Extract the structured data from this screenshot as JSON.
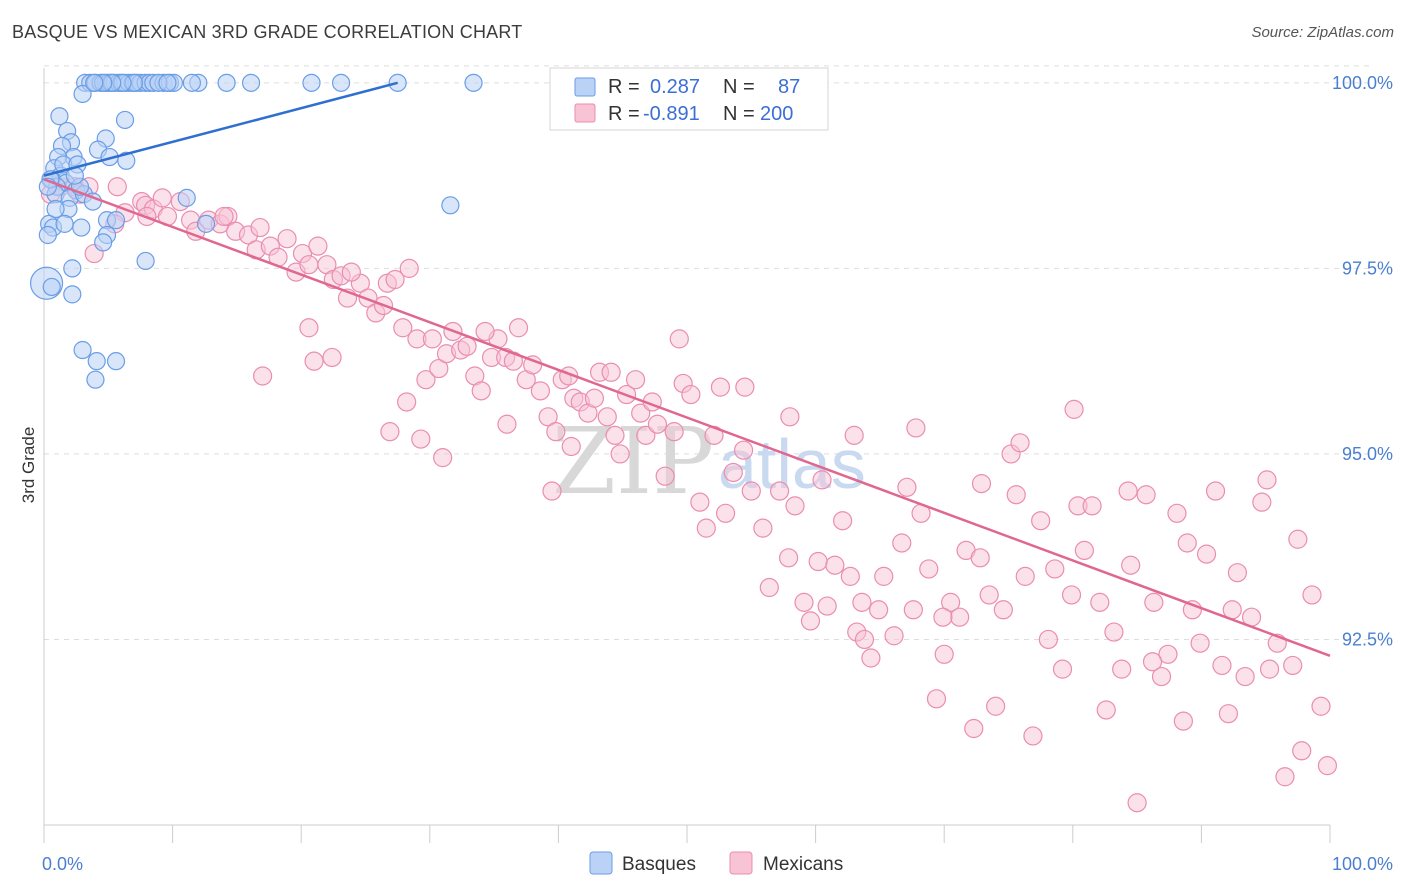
{
  "title": "BASQUE VS MEXICAN 3RD GRADE CORRELATION CHART",
  "source": "Source: ZipAtlas.com",
  "watermark": {
    "part1": "ZIP",
    "part2": "atlas"
  },
  "colors": {
    "basque": "#6a9ee6",
    "basque_fill": "#b9d2f5",
    "basque_line": "#2f6fd0",
    "mexican": "#eb8db0",
    "mexican_fill": "#f7c3d5",
    "mexican_line": "#e0678f",
    "tick": "#4a7fd0",
    "grid": "#dddddd"
  },
  "legend": {
    "rows": [
      {
        "r_label": "R =",
        "r_value": "0.287",
        "n_label": "N =",
        "n_value": "87"
      },
      {
        "r_label": "R =",
        "r_value": "-0.891",
        "n_label": "N =",
        "n_value": "200"
      }
    ],
    "bottom": [
      "Basques",
      "Mexicans"
    ]
  },
  "chart_data": {
    "type": "scatter",
    "title": "BASQUE VS MEXICAN 3RD GRADE CORRELATION CHART",
    "xlabel": "",
    "ylabel": "3rd Grade",
    "xlim": [
      0,
      100
    ],
    "ylim": [
      90.0,
      100.2
    ],
    "x_tick_labels": [
      "0.0%",
      "100.0%"
    ],
    "y_ticks": [
      100.0,
      97.5,
      95.0,
      92.5
    ],
    "y_tick_labels": [
      "100.0%",
      "97.5%",
      "95.0%",
      "92.5%"
    ],
    "grid": true,
    "legend_position": "top-center",
    "series": [
      {
        "name": "Basques",
        "r": 0.287,
        "n": 87,
        "trend": {
          "x": [
            0,
            27.5
          ],
          "y": [
            98.75,
            100.0
          ]
        },
        "points": [
          [
            3.2,
            100
          ],
          [
            3.6,
            100
          ],
          [
            4.0,
            100
          ],
          [
            4.4,
            100
          ],
          [
            4.8,
            100
          ],
          [
            5.0,
            100
          ],
          [
            5.2,
            100
          ],
          [
            5.5,
            100
          ],
          [
            5.8,
            100
          ],
          [
            6.0,
            100
          ],
          [
            6.3,
            100
          ],
          [
            6.6,
            100
          ],
          [
            6.9,
            100
          ],
          [
            7.2,
            100
          ],
          [
            7.5,
            100
          ],
          [
            7.9,
            100
          ],
          [
            8.2,
            100
          ],
          [
            8.5,
            100
          ],
          [
            9.3,
            100
          ],
          [
            9.8,
            100
          ],
          [
            10.1,
            100
          ],
          [
            12.0,
            100
          ],
          [
            14.2,
            100
          ],
          [
            16.1,
            100
          ],
          [
            20.8,
            100
          ],
          [
            23.1,
            100
          ],
          [
            27.5,
            100
          ],
          [
            33.4,
            100
          ],
          [
            3.0,
            99.85
          ],
          [
            1.2,
            99.55
          ],
          [
            6.3,
            99.5
          ],
          [
            1.8,
            99.35
          ],
          [
            2.1,
            99.2
          ],
          [
            4.8,
            99.25
          ],
          [
            1.4,
            99.15
          ],
          [
            2.3,
            99.0
          ],
          [
            4.2,
            99.1
          ],
          [
            1.1,
            99.0
          ],
          [
            6.4,
            98.95
          ],
          [
            0.8,
            98.85
          ],
          [
            1.3,
            98.75
          ],
          [
            0.6,
            98.7
          ],
          [
            1.7,
            98.65
          ],
          [
            1.0,
            98.6
          ],
          [
            2.5,
            98.55
          ],
          [
            0.9,
            98.5
          ],
          [
            2.0,
            98.45
          ],
          [
            3.1,
            98.5
          ],
          [
            11.1,
            98.45
          ],
          [
            31.6,
            98.35
          ],
          [
            0.4,
            98.1
          ],
          [
            0.7,
            98.05
          ],
          [
            2.9,
            98.05
          ],
          [
            4.9,
            98.15
          ],
          [
            5.6,
            98.15
          ],
          [
            12.6,
            98.1
          ],
          [
            0.3,
            97.95
          ],
          [
            4.9,
            97.95
          ],
          [
            4.6,
            97.85
          ],
          [
            7.9,
            97.6
          ],
          [
            2.2,
            97.5
          ],
          [
            0.2,
            97.3
          ],
          [
            0.6,
            97.25
          ],
          [
            2.2,
            97.15
          ],
          [
            3.0,
            96.4
          ],
          [
            4.1,
            96.25
          ],
          [
            5.6,
            96.25
          ],
          [
            4.0,
            96.0
          ],
          [
            0.5,
            98.7
          ],
          [
            1.5,
            98.9
          ],
          [
            2.8,
            98.6
          ],
          [
            3.8,
            98.4
          ],
          [
            1.9,
            98.3
          ],
          [
            0.3,
            98.6
          ],
          [
            2.6,
            98.9
          ],
          [
            5.1,
            99.0
          ],
          [
            8.9,
            100
          ],
          [
            7.0,
            100
          ],
          [
            6.1,
            100
          ],
          [
            5.3,
            100
          ],
          [
            4.6,
            100
          ],
          [
            3.9,
            100
          ],
          [
            9.6,
            100
          ],
          [
            11.5,
            100
          ],
          [
            0.9,
            98.3
          ],
          [
            1.6,
            98.1
          ],
          [
            2.4,
            98.75
          ]
        ]
      },
      {
        "name": "Mexicans",
        "r": -0.891,
        "n": 200,
        "trend": {
          "x": [
            0,
            100
          ],
          "y": [
            98.7,
            92.28
          ]
        },
        "points": [
          [
            0.5,
            98.5
          ],
          [
            1.3,
            98.6
          ],
          [
            2.4,
            98.6
          ],
          [
            2.8,
            98.5
          ],
          [
            3.5,
            98.6
          ],
          [
            3.9,
            97.7
          ],
          [
            5.7,
            98.6
          ],
          [
            6.3,
            98.25
          ],
          [
            7.6,
            98.4
          ],
          [
            7.9,
            98.35
          ],
          [
            8.5,
            98.3
          ],
          [
            9.2,
            98.45
          ],
          [
            9.6,
            98.2
          ],
          [
            10.6,
            98.4
          ],
          [
            11.4,
            98.15
          ],
          [
            11.8,
            98.0
          ],
          [
            12.8,
            98.15
          ],
          [
            13.7,
            98.1
          ],
          [
            14.3,
            98.2
          ],
          [
            14.9,
            98.0
          ],
          [
            15.9,
            97.95
          ],
          [
            16.5,
            97.75
          ],
          [
            17.6,
            97.8
          ],
          [
            18.2,
            97.65
          ],
          [
            18.9,
            97.9
          ],
          [
            19.6,
            97.45
          ],
          [
            20.1,
            97.7
          ],
          [
            20.6,
            97.55
          ],
          [
            21.3,
            97.8
          ],
          [
            22.0,
            97.55
          ],
          [
            22.5,
            97.35
          ],
          [
            23.1,
            97.4
          ],
          [
            23.6,
            97.1
          ],
          [
            24.6,
            97.3
          ],
          [
            25.2,
            97.1
          ],
          [
            25.8,
            96.9
          ],
          [
            26.4,
            97.0
          ],
          [
            26.7,
            97.3
          ],
          [
            27.3,
            97.35
          ],
          [
            27.9,
            96.7
          ],
          [
            28.4,
            97.5
          ],
          [
            29.0,
            96.55
          ],
          [
            29.7,
            96.0
          ],
          [
            30.2,
            96.55
          ],
          [
            30.7,
            96.15
          ],
          [
            31.3,
            96.35
          ],
          [
            31.8,
            96.65
          ],
          [
            32.4,
            96.4
          ],
          [
            32.9,
            96.45
          ],
          [
            33.5,
            96.05
          ],
          [
            34.0,
            95.85
          ],
          [
            34.8,
            96.3
          ],
          [
            35.3,
            96.55
          ],
          [
            35.9,
            96.3
          ],
          [
            36.5,
            96.25
          ],
          [
            36.9,
            96.7
          ],
          [
            37.5,
            96.0
          ],
          [
            38.0,
            96.2
          ],
          [
            38.6,
            95.85
          ],
          [
            39.2,
            95.5
          ],
          [
            39.8,
            95.3
          ],
          [
            40.3,
            96.0
          ],
          [
            40.8,
            96.05
          ],
          [
            41.2,
            95.75
          ],
          [
            41.7,
            95.7
          ],
          [
            42.3,
            95.55
          ],
          [
            42.8,
            95.75
          ],
          [
            43.2,
            96.1
          ],
          [
            43.8,
            95.5
          ],
          [
            44.4,
            95.25
          ],
          [
            44.8,
            95.0
          ],
          [
            45.3,
            95.8
          ],
          [
            46.0,
            96.0
          ],
          [
            46.4,
            95.55
          ],
          [
            46.8,
            95.25
          ],
          [
            47.3,
            95.7
          ],
          [
            47.7,
            95.4
          ],
          [
            48.3,
            94.7
          ],
          [
            49.0,
            95.3
          ],
          [
            49.4,
            96.55
          ],
          [
            49.7,
            95.95
          ],
          [
            50.3,
            95.8
          ],
          [
            51.0,
            94.35
          ],
          [
            51.5,
            94.0
          ],
          [
            52.1,
            95.25
          ],
          [
            52.6,
            95.9
          ],
          [
            53.0,
            94.2
          ],
          [
            53.6,
            94.75
          ],
          [
            54.4,
            95.05
          ],
          [
            55.0,
            94.5
          ],
          [
            55.9,
            94.0
          ],
          [
            56.4,
            93.2
          ],
          [
            57.2,
            94.5
          ],
          [
            57.9,
            93.6
          ],
          [
            58.4,
            94.3
          ],
          [
            59.1,
            93.0
          ],
          [
            59.6,
            92.75
          ],
          [
            60.2,
            93.55
          ],
          [
            60.9,
            92.95
          ],
          [
            61.5,
            93.5
          ],
          [
            62.1,
            94.1
          ],
          [
            62.7,
            93.35
          ],
          [
            63.2,
            92.6
          ],
          [
            63.8,
            92.5
          ],
          [
            64.3,
            92.25
          ],
          [
            64.9,
            92.9
          ],
          [
            65.3,
            93.35
          ],
          [
            66.1,
            92.55
          ],
          [
            66.7,
            93.8
          ],
          [
            67.1,
            94.55
          ],
          [
            67.6,
            92.9
          ],
          [
            68.2,
            94.2
          ],
          [
            68.8,
            93.45
          ],
          [
            69.4,
            91.7
          ],
          [
            70.0,
            92.3
          ],
          [
            70.5,
            93.0
          ],
          [
            71.2,
            92.8
          ],
          [
            71.7,
            93.7
          ],
          [
            72.3,
            91.3
          ],
          [
            72.9,
            94.6
          ],
          [
            73.5,
            93.1
          ],
          [
            74.0,
            91.6
          ],
          [
            74.6,
            92.9
          ],
          [
            75.2,
            95.0
          ],
          [
            75.6,
            94.45
          ],
          [
            76.3,
            93.35
          ],
          [
            76.9,
            91.2
          ],
          [
            77.5,
            94.1
          ],
          [
            78.1,
            92.5
          ],
          [
            78.6,
            93.45
          ],
          [
            79.2,
            92.1
          ],
          [
            79.9,
            93.1
          ],
          [
            80.4,
            94.3
          ],
          [
            80.9,
            93.7
          ],
          [
            81.5,
            94.3
          ],
          [
            82.1,
            93.0
          ],
          [
            82.6,
            91.55
          ],
          [
            83.2,
            92.6
          ],
          [
            83.8,
            92.1
          ],
          [
            84.5,
            93.5
          ],
          [
            85.0,
            90.3
          ],
          [
            85.7,
            94.45
          ],
          [
            86.3,
            93.0
          ],
          [
            86.9,
            92.0
          ],
          [
            87.4,
            92.3
          ],
          [
            88.1,
            94.2
          ],
          [
            88.6,
            91.4
          ],
          [
            89.3,
            92.9
          ],
          [
            89.9,
            92.45
          ],
          [
            90.4,
            93.65
          ],
          [
            91.1,
            94.5
          ],
          [
            91.6,
            92.15
          ],
          [
            92.1,
            91.5
          ],
          [
            92.8,
            93.4
          ],
          [
            93.4,
            92.0
          ],
          [
            93.9,
            92.8
          ],
          [
            94.7,
            94.35
          ],
          [
            95.3,
            92.1
          ],
          [
            95.9,
            92.45
          ],
          [
            96.5,
            90.65
          ],
          [
            97.1,
            92.15
          ],
          [
            97.8,
            91.0
          ],
          [
            98.6,
            93.1
          ],
          [
            99.3,
            91.6
          ],
          [
            99.8,
            90.8
          ],
          [
            16.8,
            98.05
          ],
          [
            23.9,
            97.45
          ],
          [
            34.3,
            96.65
          ],
          [
            44.1,
            96.1
          ],
          [
            54.5,
            95.9
          ],
          [
            58.0,
            95.5
          ],
          [
            63.0,
            95.25
          ],
          [
            67.8,
            95.35
          ],
          [
            75.9,
            95.15
          ],
          [
            80.1,
            95.6
          ],
          [
            84.3,
            94.5
          ],
          [
            92.4,
            92.9
          ],
          [
            97.5,
            93.85
          ],
          [
            72.8,
            93.6
          ],
          [
            88.9,
            93.8
          ],
          [
            63.6,
            93.0
          ],
          [
            60.5,
            94.65
          ],
          [
            69.9,
            92.8
          ],
          [
            86.2,
            92.2
          ],
          [
            95.1,
            94.65
          ],
          [
            39.5,
            94.5
          ],
          [
            41.0,
            95.1
          ],
          [
            36.0,
            95.4
          ],
          [
            31.0,
            94.95
          ],
          [
            29.3,
            95.2
          ],
          [
            26.9,
            95.3
          ],
          [
            22.4,
            96.3
          ],
          [
            17.0,
            96.05
          ],
          [
            21.0,
            96.25
          ],
          [
            28.2,
            95.7
          ],
          [
            20.6,
            96.7
          ],
          [
            14.0,
            98.2
          ],
          [
            8.0,
            98.2
          ],
          [
            5.5,
            98.1
          ]
        ]
      }
    ]
  }
}
